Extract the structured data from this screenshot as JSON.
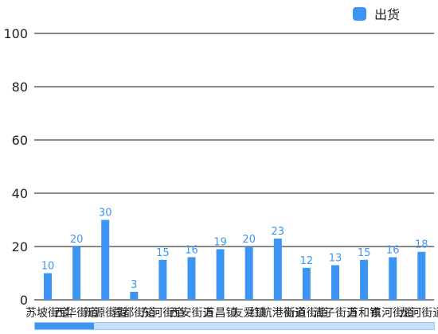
{
  "legend": {
    "label": "出货",
    "color": "#3c95f5"
  },
  "chart_data": {
    "type": "bar",
    "title": "",
    "xlabel": "",
    "ylabel": "",
    "ylim": [
      0,
      100
    ],
    "yticks": [
      0,
      20,
      40,
      60,
      80,
      100
    ],
    "grid": true,
    "legend_position": "top-right",
    "categories": [
      "苏坡街道",
      "西华街道",
      "新源街道",
      "蓉都街道",
      "东河街道",
      "西安街道",
      "万昌镇",
      "友爱镇",
      "红航港街道",
      "新道街道",
      "清子街道",
      "万和镇",
      "东河街道",
      "龙河街道"
    ],
    "series": [
      {
        "name": "出货",
        "values": [
          10,
          20,
          30,
          3,
          15,
          16,
          19,
          20,
          23,
          12,
          13,
          15,
          16,
          18
        ]
      }
    ],
    "bar_color": "#3c95f5",
    "label_color": "#3c95f5"
  },
  "scrollbar": {
    "thumb_color": "#3c95f5",
    "track_color": "#c3e0fb",
    "position": 0.15
  }
}
